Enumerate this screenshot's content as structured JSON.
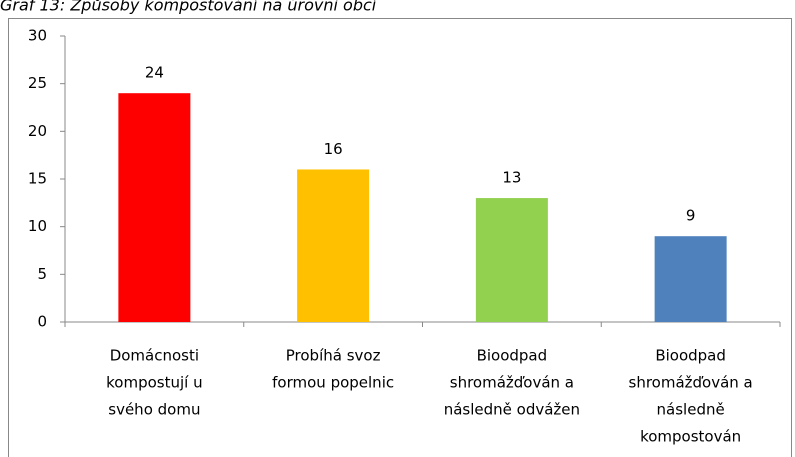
{
  "chart_data": {
    "type": "bar",
    "title": "Graf 13: Způsoby kompostování na úrovni obcí",
    "categories": [
      [
        "Domácnosti",
        "kompostují u",
        "svého domu"
      ],
      [
        "Probíhá svoz",
        "formou popelnic"
      ],
      [
        "Bioodpad",
        "shromážďován a",
        "následně odvážen"
      ],
      [
        "Bioodpad",
        "shromážďován a",
        "následně",
        "kompostován"
      ]
    ],
    "values": [
      24,
      16,
      13,
      9
    ],
    "colors": [
      "#ff0000",
      "#ffc000",
      "#92d050",
      "#4f81bd"
    ],
    "ylim": [
      0,
      30
    ],
    "yticks": [
      0,
      5,
      10,
      15,
      20,
      25,
      30
    ],
    "grid": false
  }
}
